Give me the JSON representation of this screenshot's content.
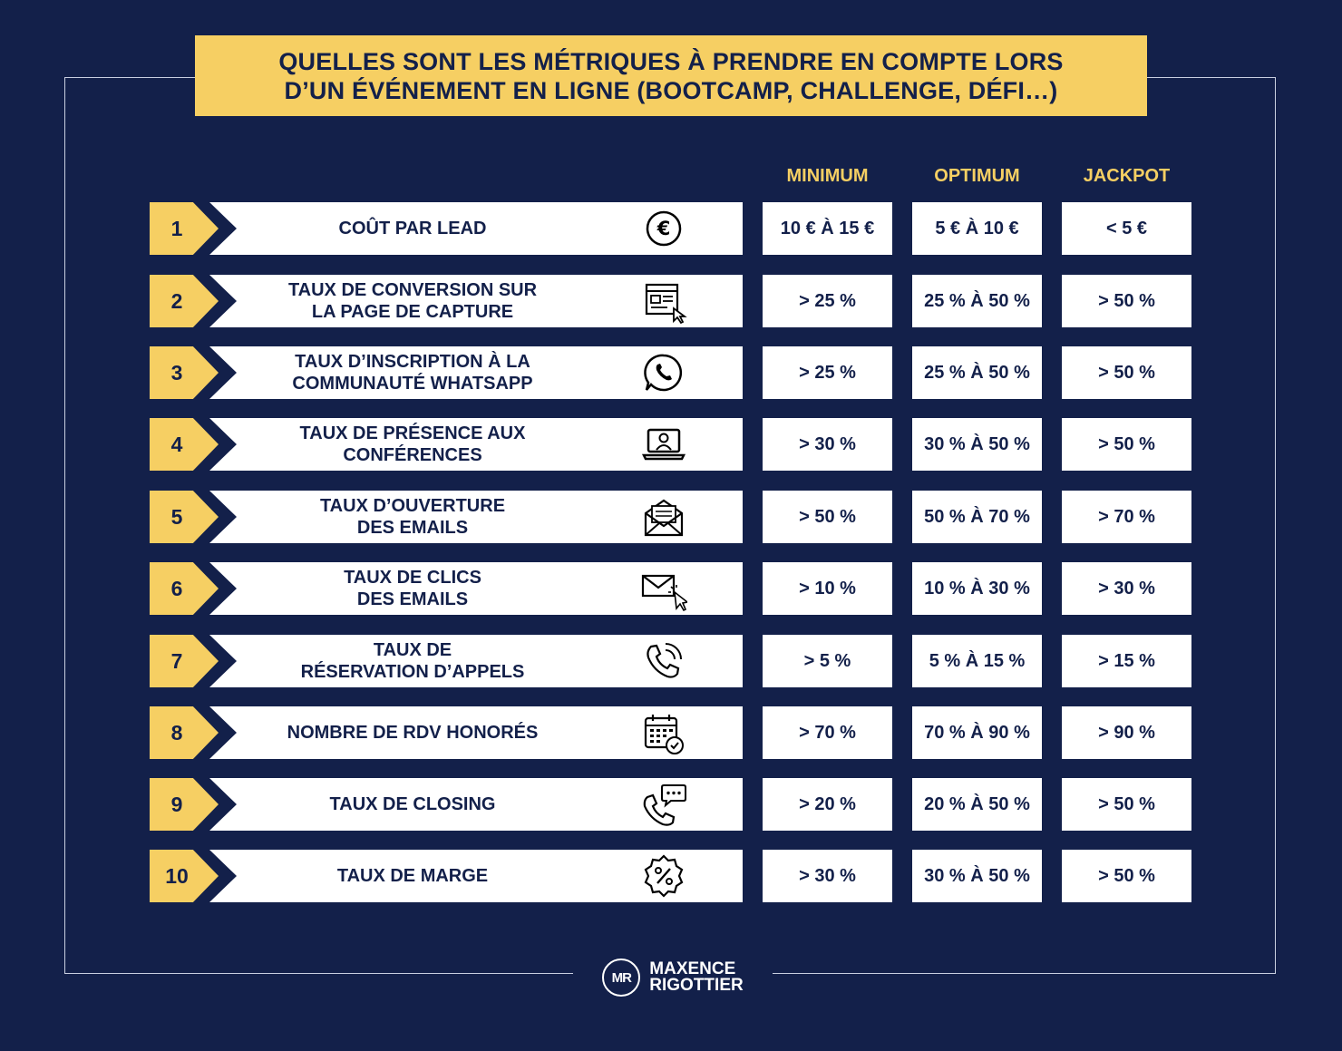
{
  "title": {
    "line1": "QUELLES SONT LES MÉTRIQUES À PRENDRE EN COMPTE LORS",
    "line2": "D’UN ÉVÉNEMENT EN LIGNE (BOOTCAMP, CHALLENGE, DÉFI…)"
  },
  "columns": {
    "minimum": "MINIMUM",
    "optimum": "OPTIMUM",
    "jackpot": "JACKPOT"
  },
  "rows": [
    {
      "num": "1",
      "label1": "COÛT PAR LEAD",
      "label2": "",
      "icon": "euro-icon",
      "minimum": "10 € À 15 €",
      "optimum": "5 € À 10 €",
      "jackpot": "< 5 €"
    },
    {
      "num": "2",
      "label1": "TAUX DE CONVERSION SUR",
      "label2": "LA PAGE DE CAPTURE",
      "icon": "landing-page-icon",
      "minimum": "> 25 %",
      "optimum": "25 % À 50 %",
      "jackpot": "> 50 %"
    },
    {
      "num": "3",
      "label1": "TAUX D’INSCRIPTION À LA",
      "label2": "COMMUNAUTÉ WHATSAPP",
      "icon": "whatsapp-icon",
      "minimum": "> 25 %",
      "optimum": "25 % À 50 %",
      "jackpot": "> 50 %"
    },
    {
      "num": "4",
      "label1": "TAUX DE PRÉSENCE AUX",
      "label2": "CONFÉRENCES",
      "icon": "laptop-user-icon",
      "minimum": "> 30 %",
      "optimum": "30 % À 50 %",
      "jackpot": "> 50 %"
    },
    {
      "num": "5",
      "label1": "TAUX D’OUVERTURE",
      "label2": "DES EMAILS",
      "icon": "open-envelope-icon",
      "minimum": "> 50 %",
      "optimum": "50 % À 70 %",
      "jackpot": "> 70 %"
    },
    {
      "num": "6",
      "label1": "TAUX DE CLICS",
      "label2": "DES EMAILS",
      "icon": "email-click-icon",
      "minimum": "> 10 %",
      "optimum": "10 % À 30 %",
      "jackpot": "> 30 %"
    },
    {
      "num": "7",
      "label1": "TAUX DE",
      "label2": "RÉSERVATION D’APPELS",
      "icon": "phone-call-icon",
      "minimum": "> 5 %",
      "optimum": "5 % À 15 %",
      "jackpot": "> 15 %"
    },
    {
      "num": "8",
      "label1": "NOMBRE DE RDV HONORÉS",
      "label2": "",
      "icon": "calendar-check-icon",
      "minimum": "> 70 %",
      "optimum": "70 % À 90 %",
      "jackpot": "> 90 %"
    },
    {
      "num": "9",
      "label1": "TAUX DE CLOSING",
      "label2": "",
      "icon": "phone-chat-icon",
      "minimum": "> 20 %",
      "optimum": "20 % À 50 %",
      "jackpot": "> 50 %"
    },
    {
      "num": "10",
      "label1": "TAUX DE MARGE",
      "label2": "",
      "icon": "percent-badge-icon",
      "minimum": "> 30 %",
      "optimum": "30 % À 50 %",
      "jackpot": "> 50 %"
    }
  ],
  "logo": {
    "mark": "MR",
    "line1": "MAXENCE",
    "line2": "RIGOTTIER"
  },
  "colors": {
    "background": "#13204a",
    "accent": "#f6cf63",
    "card": "#ffffff"
  }
}
